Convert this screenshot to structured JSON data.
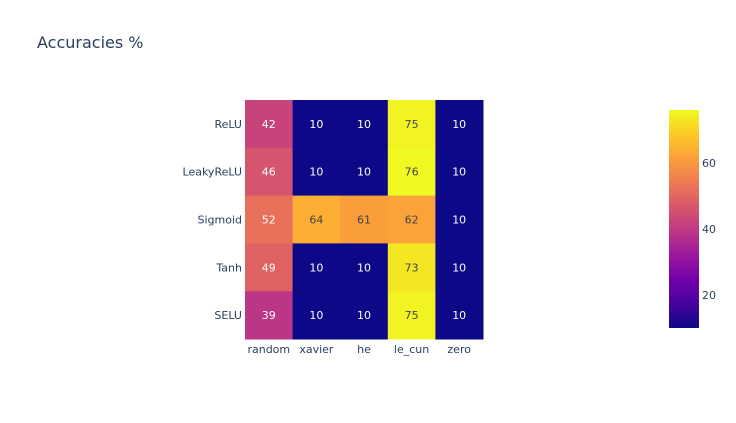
{
  "chart_data": {
    "type": "heatmap",
    "title": "Accuracies %",
    "xlabel": "",
    "ylabel": "",
    "x_categories": [
      "random",
      "xavier",
      "he",
      "le_cun",
      "zero"
    ],
    "y_categories": [
      "ReLU",
      "LeakyReLU",
      "Sigmoid",
      "Tanh",
      "SELU"
    ],
    "values": [
      [
        42,
        10,
        10,
        75,
        10
      ],
      [
        46,
        10,
        10,
        76,
        10
      ],
      [
        52,
        64,
        61,
        62,
        10
      ],
      [
        49,
        10,
        10,
        73,
        10
      ],
      [
        39,
        10,
        10,
        75,
        10
      ]
    ],
    "colorscale": "plasma",
    "color_range": [
      10,
      76
    ],
    "colorbar_ticks": [
      20,
      40,
      60
    ]
  }
}
